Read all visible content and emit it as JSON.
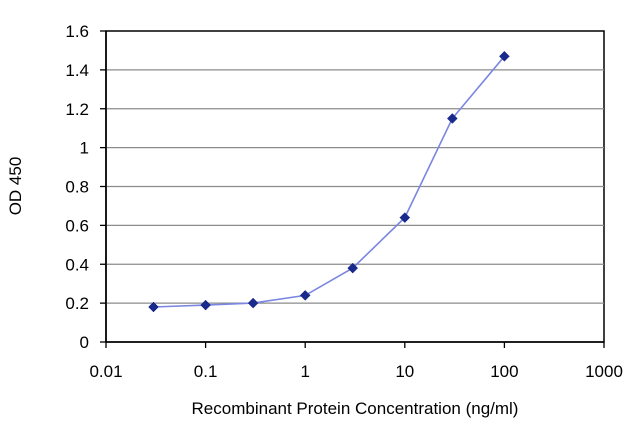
{
  "chart_data": {
    "type": "scatter",
    "title": "",
    "xlabel": "Recombinant Protein Concentration (ng/ml)",
    "ylabel": "OD 450",
    "x_scale": "log",
    "xlim": [
      0.01,
      1000
    ],
    "ylim": [
      0,
      1.6
    ],
    "x_ticks": [
      0.01,
      0.1,
      1,
      10,
      100,
      1000
    ],
    "x_tick_labels": [
      "0.01",
      "0.1",
      "1",
      "10",
      "100",
      "1000"
    ],
    "y_ticks": [
      0,
      0.2,
      0.4,
      0.6,
      0.8,
      1,
      1.2,
      1.4,
      1.6
    ],
    "y_tick_labels": [
      "0",
      "0.2",
      "0.4",
      "0.6",
      "0.8",
      "1",
      "1.2",
      "1.4",
      "1.6"
    ],
    "grid": "horizontal",
    "legend": "none",
    "marker": "diamond",
    "series": [
      {
        "color": "#1a2a8c",
        "line_color": "#7a86e0",
        "x": [
          0.03,
          0.1,
          0.3,
          1,
          3,
          10,
          30,
          100
        ],
        "y": [
          0.18,
          0.19,
          0.2,
          0.24,
          0.38,
          0.64,
          1.15,
          1.47
        ]
      }
    ]
  }
}
